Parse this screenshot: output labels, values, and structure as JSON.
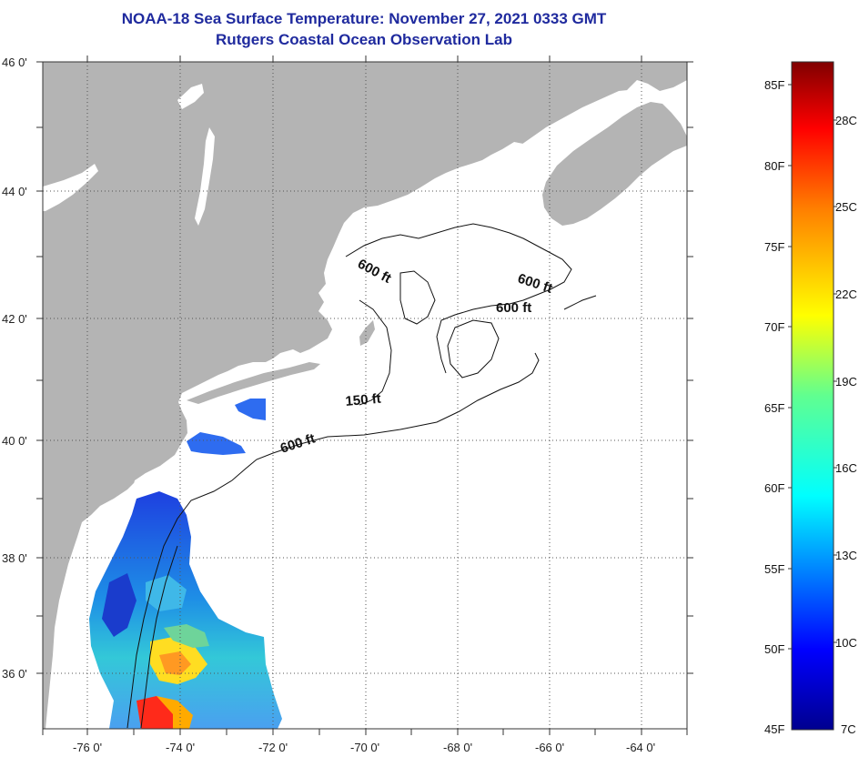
{
  "title": {
    "line1": "NOAA-18 Sea Surface Temperature:  November 27, 2021 0333 GMT",
    "line2": "Rutgers Coastal Ocean Observation Lab"
  },
  "map": {
    "lat_labels": [
      "46 0'",
      "44 0'",
      "42 0'",
      "40 0'",
      "38 0'",
      "36 0'"
    ],
    "lon_labels": [
      "-76 0'",
      "-74 0'",
      "-72 0'",
      "-70 0'",
      "-68 0'",
      "-66 0'",
      "-64 0'"
    ],
    "contour_labels": [
      "600 ft",
      "600 ft",
      "600 ft",
      "150 ft",
      "600 ft"
    ],
    "colors": {
      "land": "#b4b4b4",
      "ocean": "#ffffff",
      "grid": "#555555"
    }
  },
  "colorbar": {
    "fahrenheit": [
      "85F",
      "80F",
      "75F",
      "70F",
      "65F",
      "60F",
      "55F",
      "50F",
      "45F"
    ],
    "celsius": [
      "28C",
      "25C",
      "22C",
      "19C",
      "16C",
      "13C",
      "10C",
      "7C"
    ]
  }
}
